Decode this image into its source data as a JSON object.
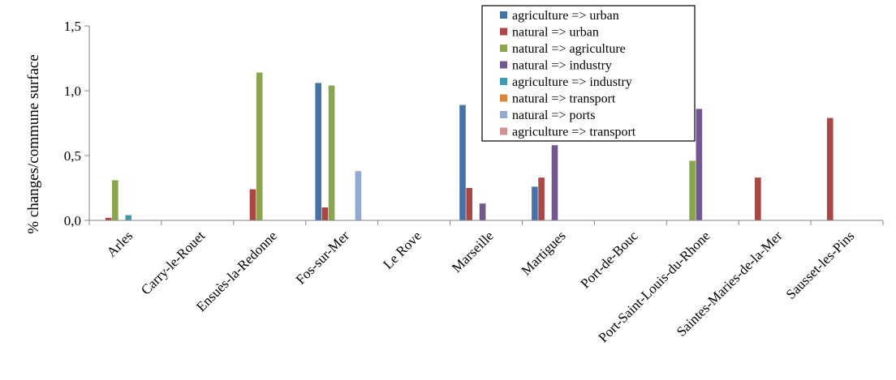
{
  "chart_data": {
    "type": "bar",
    "title": "",
    "xlabel": "",
    "ylabel": "% changes/commune surface",
    "ylim": [
      0,
      1.5
    ],
    "yticks": [
      0,
      0.5,
      1.0,
      1.5
    ],
    "ytick_labels": [
      "0,0",
      "0,5",
      "1,0",
      "1,5"
    ],
    "grid": false,
    "legend_position": "top-right",
    "categories": [
      "Arles",
      "Carry-le-Rouet",
      "Ensuès-la-Redonne",
      "Fos-sur-Mer",
      "Le Rove",
      "Marseille",
      "Martigues",
      "Port-de-Bouc",
      "Port-Saint-Louis-du-Rhone",
      "Saintes-Maries-de-la-Mer",
      "Sausset-les-Pins"
    ],
    "series": [
      {
        "name": "agriculture => urban",
        "color": "#4572A7",
        "values": [
          0,
          0,
          0,
          1.06,
          0,
          0.89,
          0.26,
          0,
          0,
          0,
          0
        ]
      },
      {
        "name": "natural => urban",
        "color": "#AA4643",
        "values": [
          0.02,
          0,
          0.24,
          0.1,
          0,
          0.25,
          0.33,
          0,
          0,
          0.33,
          0.79
        ]
      },
      {
        "name": "natural => agriculture",
        "color": "#89A54E",
        "values": [
          0.31,
          0,
          1.14,
          1.04,
          0,
          0,
          0,
          0,
          0.46,
          0,
          0
        ]
      },
      {
        "name": "natural => industry",
        "color": "#71588F",
        "values": [
          0,
          0,
          0,
          0,
          0,
          0.13,
          0.58,
          0,
          0.86,
          0,
          0
        ]
      },
      {
        "name": "agriculture => industry",
        "color": "#4198AF",
        "values": [
          0.04,
          0,
          0,
          0,
          0,
          0,
          0,
          0,
          0,
          0,
          0
        ]
      },
      {
        "name": "natural => transport",
        "color": "#DB843D",
        "values": [
          0,
          0,
          0,
          0,
          0,
          0,
          0,
          0,
          0,
          0,
          0
        ]
      },
      {
        "name": "natural => ports",
        "color": "#93A9CF",
        "values": [
          0,
          0,
          0,
          0.38,
          0,
          0,
          0,
          0,
          0,
          0,
          0
        ]
      },
      {
        "name": "agriculture => transport",
        "color": "#D19392",
        "values": [
          0,
          0,
          0,
          0,
          0,
          0,
          0,
          0,
          0,
          0,
          0
        ]
      }
    ]
  }
}
